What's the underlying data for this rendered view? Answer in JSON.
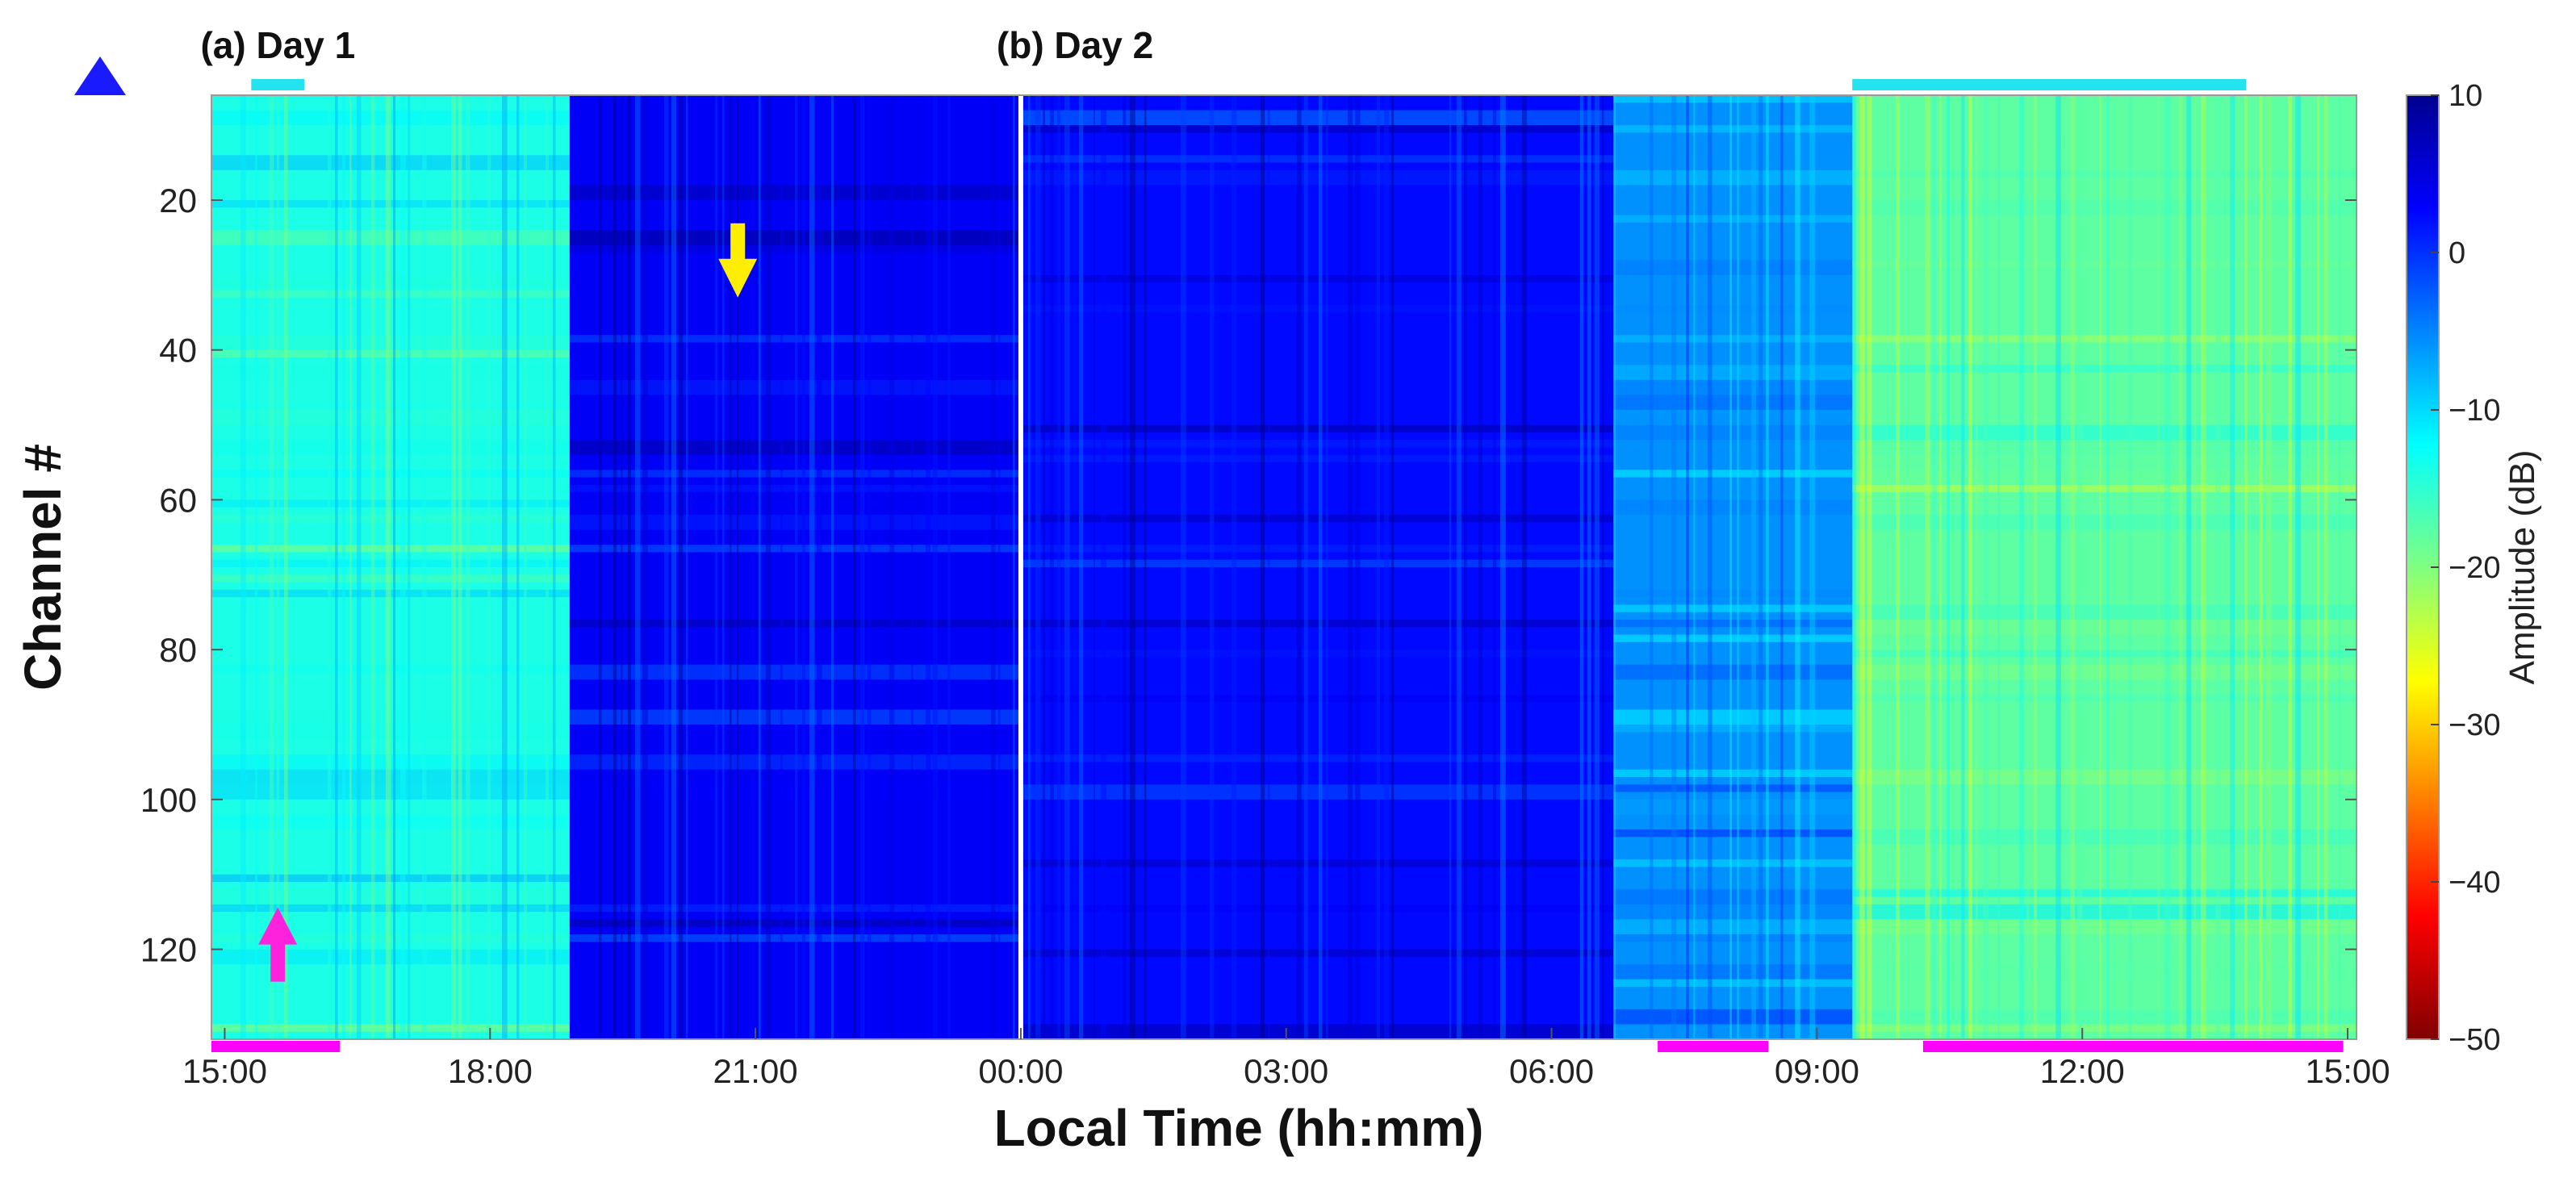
{
  "chart_data": {
    "type": "heatmap",
    "title": "",
    "xlabel": "Local Time (hh:mm)",
    "ylabel": "Channel #",
    "x_ticks": [
      "15:00",
      "18:00",
      "21:00",
      "00:00",
      "03:00",
      "06:00",
      "09:00",
      "12:00",
      "15:00"
    ],
    "x_tick_hours": [
      15,
      18,
      21,
      24,
      27,
      30,
      33,
      36,
      39
    ],
    "xlim_hours": [
      14.85,
      39.1
    ],
    "y_ticks": [
      20,
      40,
      60,
      80,
      100,
      120
    ],
    "ylim": [
      6,
      132
    ],
    "y_reversed": true,
    "grid": true,
    "panel_labels": [
      {
        "text": "(a) Day 1",
        "start_hour": 15.0
      },
      {
        "text": "(b) Day 2",
        "start_hour": 24.0
      }
    ],
    "colorbar": {
      "label": "Amplitude (dB)",
      "ticks": [
        10,
        0,
        -10,
        -20,
        -30,
        -40,
        -50
      ],
      "range": [
        -50,
        10
      ],
      "colormap": "jet"
    },
    "regions": [
      {
        "start_hour": 14.85,
        "end_hour": 18.9,
        "amplitude_dB": -14
      },
      {
        "start_hour": 18.9,
        "end_hour": 24.0,
        "amplitude_dB": 3
      },
      {
        "start_hour": 24.0,
        "end_hour": 30.7,
        "amplitude_dB": 2
      },
      {
        "start_hour": 30.7,
        "end_hour": 33.4,
        "amplitude_dB": -6
      },
      {
        "start_hour": 33.4,
        "end_hour": 39.1,
        "amplitude_dB": -18
      }
    ],
    "gap_hour": 24.0,
    "cyan_bars": [
      {
        "start_hour": 15.3,
        "end_hour": 15.9
      },
      {
        "start_hour": 33.4,
        "end_hour": 37.85
      }
    ],
    "magenta_bars": [
      {
        "start_hour": 14.85,
        "end_hour": 16.3
      },
      {
        "start_hour": 31.2,
        "end_hour": 32.45
      },
      {
        "start_hour": 34.2,
        "end_hour": 38.95
      }
    ],
    "markers": [
      {
        "shape": "triangle",
        "color": "#1a1aff"
      },
      {
        "shape": "arrow-down",
        "color": "#ffee00",
        "hour": 20.8,
        "channel": 33
      },
      {
        "shape": "arrow-up",
        "color": "#ff22dd",
        "hour": 15.6,
        "channel": 120
      }
    ]
  }
}
